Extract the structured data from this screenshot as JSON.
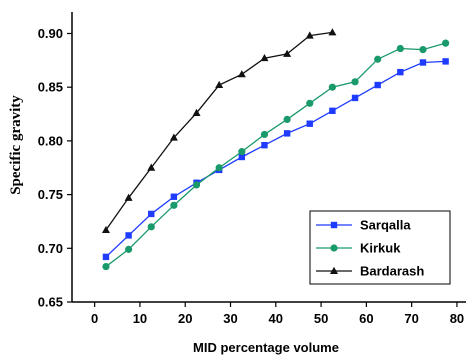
{
  "chart_data": {
    "type": "line",
    "title": "",
    "xlabel": "MID percentage volume",
    "ylabel": "Specific gravity",
    "xlim": [
      -5,
      82
    ],
    "ylim": [
      0.65,
      0.92
    ],
    "xticks": [
      0,
      10,
      20,
      30,
      40,
      50,
      60,
      70,
      80
    ],
    "yticks": [
      0.65,
      0.7,
      0.75,
      0.8,
      0.85,
      0.9
    ],
    "xtick_labels": [
      "0",
      "10",
      "20",
      "30",
      "40",
      "50",
      "60",
      "70",
      "80"
    ],
    "ytick_labels": [
      "0.65",
      "0.70",
      "0.75",
      "0.80",
      "0.85",
      "0.90"
    ],
    "grid": false,
    "legend_position": "bottom-right",
    "series": [
      {
        "name": "Sarqalla",
        "color": "#1f3bff",
        "marker": "square",
        "x": [
          2.5,
          7.5,
          12.5,
          17.5,
          22.5,
          27.5,
          32.5,
          37.5,
          42.5,
          47.5,
          52.5,
          57.5,
          62.5,
          67.5,
          72.5,
          77.5
        ],
        "y": [
          0.692,
          0.712,
          0.732,
          0.748,
          0.761,
          0.773,
          0.785,
          0.796,
          0.807,
          0.816,
          0.828,
          0.84,
          0.852,
          0.864,
          0.873,
          0.874
        ]
      },
      {
        "name": "Kirkuk",
        "color": "#1a9a6a",
        "marker": "circle",
        "x": [
          2.5,
          7.5,
          12.5,
          17.5,
          22.5,
          27.5,
          32.5,
          37.5,
          42.5,
          47.5,
          52.5,
          57.5,
          62.5,
          67.5,
          72.5,
          77.5
        ],
        "y": [
          0.683,
          0.699,
          0.72,
          0.74,
          0.759,
          0.775,
          0.79,
          0.806,
          0.82,
          0.835,
          0.85,
          0.855,
          0.876,
          0.886,
          0.885,
          0.891
        ]
      },
      {
        "name": "Bardarash",
        "color": "#111111",
        "marker": "triangle",
        "x": [
          2.5,
          7.5,
          12.5,
          17.5,
          22.5,
          27.5,
          32.5,
          37.5,
          42.5,
          47.5,
          52.5
        ],
        "y": [
          0.717,
          0.747,
          0.775,
          0.803,
          0.826,
          0.852,
          0.862,
          0.877,
          0.881,
          0.898,
          0.901
        ]
      }
    ]
  }
}
